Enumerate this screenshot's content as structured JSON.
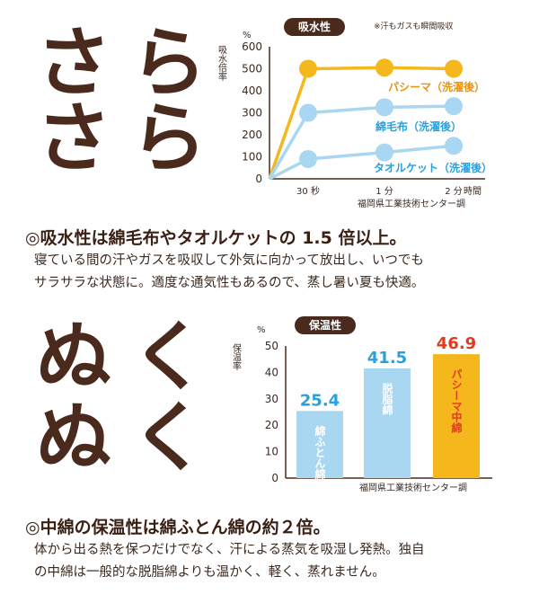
{
  "section1": {
    "big_text_line1": "さら",
    "big_text_line2": "さら",
    "badge": "吸水性",
    "note": "※汗もガスも瞬間吸収",
    "headline": "◎吸水性は綿毛布やタオルケットの 1.5 倍以上。",
    "body_line1": "寝ている間の汗やガスを吸収して外気に向かって放出し、いつでも",
    "body_line2": "サラサラな状態に。適度な通気性もあるので、蒸し暑い夏も快適。"
  },
  "section2": {
    "big_text_line1": "ぬく",
    "big_text_line2": "ぬく",
    "badge": "保温性",
    "headline": "◎中綿の保温性は綿ふとん綿の約２倍。",
    "body_line1": "体から出る熱を保つだけでなく、汗による蒸気を吸湿し発熱。独自",
    "body_line2": "の中綿は一般的な脱脂綿よりも温かく、軽く、蒸れません。"
  },
  "chart_data": [
    {
      "type": "line",
      "title": "吸水性",
      "ylabel": "吸水倍率",
      "yunit": "%",
      "ylim": [
        0,
        600
      ],
      "yticks": [
        "0",
        "100",
        "200",
        "300",
        "400",
        "500",
        "600"
      ],
      "x": [
        "30 秒",
        "1 分",
        "2 分"
      ],
      "xlabel": "時間",
      "source": "福岡県工業技術センター調",
      "grid": false,
      "series": [
        {
          "name": "パシーマ（洗濯後）",
          "values": [
            500,
            505,
            500
          ],
          "color": "#f5b81c"
        },
        {
          "name": "綿毛布（洗濯後）",
          "values": [
            300,
            325,
            330
          ],
          "color": "#a9d6f0"
        },
        {
          "name": "タオルケット（洗濯後）",
          "values": [
            90,
            120,
            150
          ],
          "color": "#a9d6f0"
        }
      ]
    },
    {
      "type": "bar",
      "title": "保温性",
      "ylabel": "保温率",
      "yunit": "%",
      "ylim": [
        0,
        50
      ],
      "yticks": [
        "0",
        "10",
        "20",
        "30",
        "40",
        "50"
      ],
      "categories": [
        "綿ふとん綿",
        "脱脂綿",
        "パシーマ中綿"
      ],
      "values": [
        25.4,
        41.5,
        46.9
      ],
      "value_labels": [
        "25.4",
        "41.5",
        "46.9"
      ],
      "colors": [
        "#a9d6f0",
        "#a9d6f0",
        "#f5b81c"
      ],
      "label_colors": [
        "#2aa0dc",
        "#2aa0dc",
        "#e23a1e"
      ],
      "source": "福岡県工業技術センター調",
      "grid": false
    }
  ]
}
